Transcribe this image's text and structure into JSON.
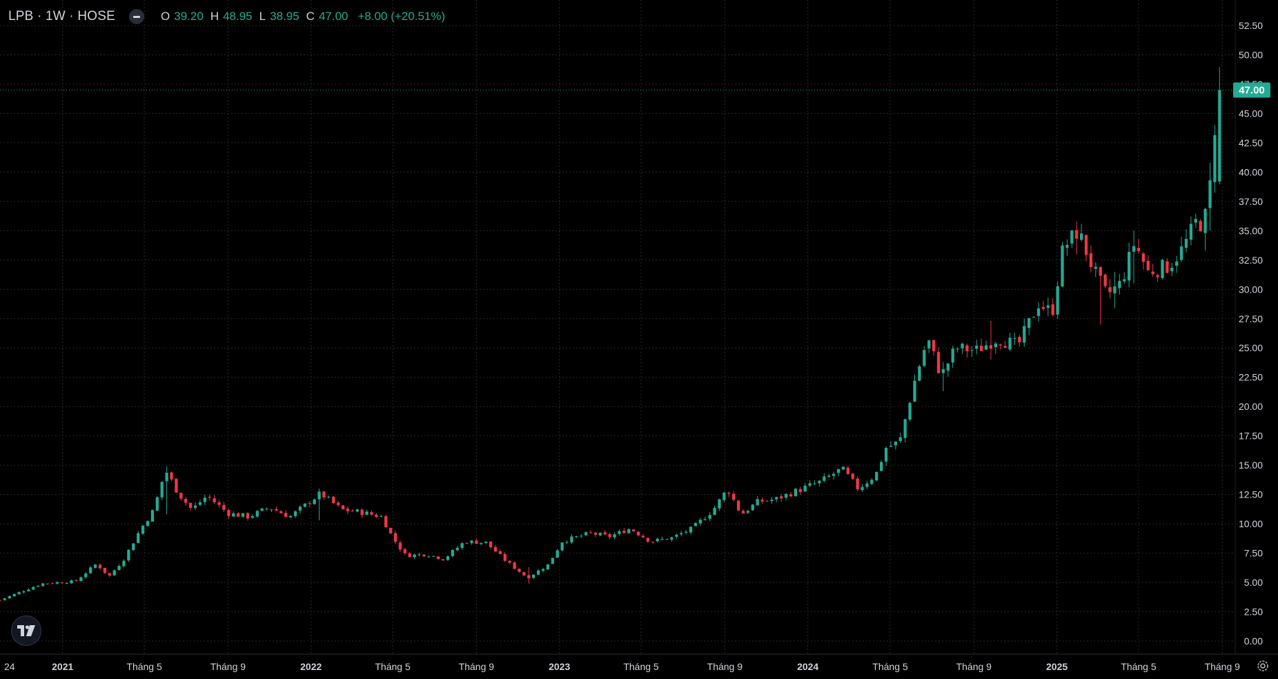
{
  "header": {
    "title": "LPB · 1W · HOSE",
    "open_label": "O",
    "open": "39.20",
    "high_label": "H",
    "high": "48.95",
    "low_label": "L",
    "low": "38.95",
    "close_label": "C",
    "close": "47.00",
    "change": "+8.00 (+20.51%)"
  },
  "colors": {
    "background": "#000000",
    "up": "#22ab94",
    "down": "#f23645",
    "grid": "#2a2a2a",
    "axis_text": "#d1d4dc",
    "last_price_badge": "#22ab94"
  },
  "icons": {
    "toggle": "minus-toggle-icon",
    "logo": "tradingview-logo-icon",
    "settings": "gear-icon"
  },
  "chart_data": {
    "type": "candlestick",
    "symbol": "LPB",
    "interval": "1W",
    "exchange": "HOSE",
    "y_axis": {
      "min": 0,
      "max": 52.5,
      "ticks": [
        "0.00",
        "2.50",
        "5.00",
        "7.50",
        "10.00",
        "12.50",
        "15.00",
        "17.50",
        "20.00",
        "22.50",
        "25.00",
        "27.50",
        "30.00",
        "32.50",
        "35.00",
        "37.50",
        "40.00",
        "42.50",
        "45.00",
        "47.50",
        "50.00",
        "52.50"
      ]
    },
    "x_axis": {
      "start": "2020-10-01",
      "end": "2025-09-20",
      "labels": [
        {
          "text": "24",
          "date": "2020-10-15",
          "bold": false
        },
        {
          "text": "2021",
          "date": "2021-01-01",
          "bold": true
        },
        {
          "text": "Tháng 5",
          "date": "2021-05-01",
          "bold": false
        },
        {
          "text": "Tháng 9",
          "date": "2021-09-01",
          "bold": false
        },
        {
          "text": "2022",
          "date": "2022-01-01",
          "bold": true
        },
        {
          "text": "Tháng 5",
          "date": "2022-05-01",
          "bold": false
        },
        {
          "text": "Tháng 9",
          "date": "2022-09-01",
          "bold": false
        },
        {
          "text": "2023",
          "date": "2023-01-01",
          "bold": true
        },
        {
          "text": "Tháng 5",
          "date": "2023-05-01",
          "bold": false
        },
        {
          "text": "Tháng 9",
          "date": "2023-09-01",
          "bold": false
        },
        {
          "text": "2024",
          "date": "2024-01-01",
          "bold": true
        },
        {
          "text": "Tháng 5",
          "date": "2024-05-01",
          "bold": false
        },
        {
          "text": "Tháng 9",
          "date": "2024-09-01",
          "bold": false
        },
        {
          "text": "2025",
          "date": "2025-01-01",
          "bold": true
        },
        {
          "text": "Tháng 5",
          "date": "2025-05-01",
          "bold": false
        },
        {
          "text": "Tháng 9",
          "date": "2025-09-01",
          "bold": false
        }
      ]
    },
    "last_price": 47.0,
    "last_price_label": "47.00",
    "last_date": "2025-08-25",
    "grid": true,
    "series": [
      {
        "date": "2020-10-01",
        "close": 3.5
      },
      {
        "date": "2020-12-01",
        "close": 4.9
      },
      {
        "date": "2021-01-20",
        "close": 5.1
      },
      {
        "date": "2021-02-20",
        "close": 6.6
      },
      {
        "date": "2021-03-10",
        "close": 5.5
      },
      {
        "date": "2021-04-01",
        "close": 7.0
      },
      {
        "date": "2021-04-25",
        "close": 9.5
      },
      {
        "date": "2021-05-15",
        "close": 11.2
      },
      {
        "date": "2021-06-01",
        "close": 14.6
      },
      {
        "date": "2021-06-20",
        "close": 12.6
      },
      {
        "date": "2021-07-10",
        "close": 11.2
      },
      {
        "date": "2021-08-01",
        "close": 12.4
      },
      {
        "date": "2021-09-01",
        "close": 10.9
      },
      {
        "date": "2021-10-01",
        "close": 10.6
      },
      {
        "date": "2021-11-01",
        "close": 11.4
      },
      {
        "date": "2021-12-01",
        "close": 10.6
      },
      {
        "date": "2022-01-15",
        "close": 12.6
      },
      {
        "date": "2022-02-15",
        "close": 11.2
      },
      {
        "date": "2022-03-15",
        "close": 11.0
      },
      {
        "date": "2022-04-15",
        "close": 10.6
      },
      {
        "date": "2022-05-01",
        "close": 8.8
      },
      {
        "date": "2022-05-20",
        "close": 7.3
      },
      {
        "date": "2022-06-20",
        "close": 7.4
      },
      {
        "date": "2022-07-15",
        "close": 7.0
      },
      {
        "date": "2022-08-15",
        "close": 8.5
      },
      {
        "date": "2022-09-15",
        "close": 8.4
      },
      {
        "date": "2022-10-15",
        "close": 6.8
      },
      {
        "date": "2022-11-15",
        "close": 5.4
      },
      {
        "date": "2022-12-15",
        "close": 6.5
      },
      {
        "date": "2023-01-05",
        "close": 8.5
      },
      {
        "date": "2023-02-15",
        "close": 9.2
      },
      {
        "date": "2023-03-15",
        "close": 8.9
      },
      {
        "date": "2023-04-15",
        "close": 9.6
      },
      {
        "date": "2023-05-15",
        "close": 8.5
      },
      {
        "date": "2023-06-15",
        "close": 8.8
      },
      {
        "date": "2023-07-15",
        "close": 9.6
      },
      {
        "date": "2023-08-15",
        "close": 11.2
      },
      {
        "date": "2023-09-05",
        "close": 13.0
      },
      {
        "date": "2023-09-25",
        "close": 10.8
      },
      {
        "date": "2023-10-20",
        "close": 11.9
      },
      {
        "date": "2023-11-15",
        "close": 12.1
      },
      {
        "date": "2023-12-15",
        "close": 12.8
      },
      {
        "date": "2024-01-20",
        "close": 13.6
      },
      {
        "date": "2024-02-20",
        "close": 14.7
      },
      {
        "date": "2024-03-15",
        "close": 13.0
      },
      {
        "date": "2024-04-10",
        "close": 14.2
      },
      {
        "date": "2024-04-25",
        "close": 16.5
      },
      {
        "date": "2024-05-15",
        "close": 17.0
      },
      {
        "date": "2024-06-05",
        "close": 22.0
      },
      {
        "date": "2024-06-25",
        "close": 25.8
      },
      {
        "date": "2024-07-15",
        "close": 22.6
      },
      {
        "date": "2024-08-05",
        "close": 25.0
      },
      {
        "date": "2024-09-05",
        "close": 24.8
      },
      {
        "date": "2024-10-05",
        "close": 25.8
      },
      {
        "date": "2024-11-05",
        "close": 25.2
      },
      {
        "date": "2024-12-05",
        "close": 28.8
      },
      {
        "date": "2024-12-25",
        "close": 28.0
      },
      {
        "date": "2025-01-10",
        "close": 33.5
      },
      {
        "date": "2025-02-01",
        "close": 35.0
      },
      {
        "date": "2025-02-25",
        "close": 31.5
      },
      {
        "date": "2025-03-15",
        "close": 29.5
      },
      {
        "date": "2025-04-05",
        "close": 30.5
      },
      {
        "date": "2025-04-25",
        "close": 34.0
      },
      {
        "date": "2025-05-15",
        "close": 31.5
      },
      {
        "date": "2025-06-15",
        "close": 32.0
      },
      {
        "date": "2025-07-05",
        "close": 33.5
      },
      {
        "date": "2025-07-25",
        "close": 35.8
      },
      {
        "date": "2025-08-05",
        "close": 35.5
      },
      {
        "date": "2025-08-15",
        "close": 39.2
      },
      {
        "date": "2025-08-25",
        "close": 47.0
      }
    ],
    "spikes": [
      {
        "date": "2021-06-01",
        "high": 14.9,
        "low": 10.8
      },
      {
        "date": "2022-01-15",
        "high": 12.9,
        "low": 10.3
      },
      {
        "date": "2022-11-15",
        "high": 6.3,
        "low": 4.9
      },
      {
        "date": "2024-07-15",
        "high": 23.8,
        "low": 21.3
      },
      {
        "date": "2024-09-25",
        "high": 27.3,
        "low": 24.0
      },
      {
        "date": "2025-02-01",
        "high": 35.8,
        "low": 33.0
      },
      {
        "date": "2025-03-05",
        "high": 31.0,
        "low": 27.0
      },
      {
        "date": "2025-03-25",
        "high": 31.5,
        "low": 28.4
      },
      {
        "date": "2025-04-25",
        "high": 35.0,
        "low": 30.5
      },
      {
        "date": "2025-08-05",
        "high": 36.8,
        "low": 33.3
      },
      {
        "date": "2025-08-15",
        "high": 40.8,
        "low": 35.0
      },
      {
        "date": "2025-08-25",
        "high": 48.95,
        "low": 38.95
      }
    ]
  }
}
